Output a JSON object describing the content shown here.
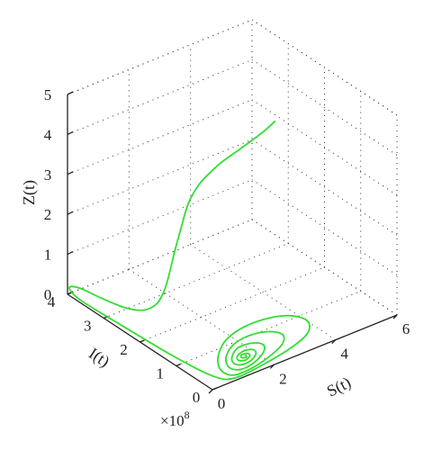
{
  "chart_data": {
    "type": "line3d",
    "title": "",
    "xlabel": "S(t)",
    "ylabel": "I(t)",
    "zlabel": "Z(t)",
    "x_multiplier": "",
    "y_multiplier": "×10",
    "y_multiplier_exp": "8",
    "xlim": [
      0,
      6
    ],
    "ylim": [
      0,
      4
    ],
    "zlim": [
      0,
      5
    ],
    "x_ticks": [
      0,
      2,
      4,
      6
    ],
    "y_ticks": [
      0,
      1,
      2,
      3,
      4
    ],
    "z_ticks": [
      0,
      1,
      2,
      3,
      4,
      5
    ],
    "grid": true,
    "line_color": "#33dd33",
    "series": [
      {
        "points": [
          [
            5.8,
            3.2,
            3.0
          ],
          [
            5.2,
            3.0,
            3.05
          ],
          [
            4.5,
            2.8,
            3.12
          ],
          [
            3.8,
            2.6,
            3.2
          ],
          [
            3.1,
            2.4,
            3.28
          ],
          [
            2.6,
            2.25,
            3.3
          ],
          [
            2.1,
            2.15,
            3.2
          ],
          [
            1.7,
            2.1,
            2.9
          ],
          [
            1.4,
            2.05,
            2.4
          ],
          [
            1.2,
            2.05,
            1.9
          ],
          [
            1.1,
            2.1,
            1.4
          ],
          [
            1.02,
            2.18,
            0.9
          ],
          [
            0.9,
            2.3,
            0.5
          ],
          [
            0.7,
            2.5,
            0.28
          ],
          [
            0.5,
            2.85,
            0.2
          ],
          [
            0.3,
            3.3,
            0.22
          ],
          [
            0.12,
            3.75,
            0.26
          ],
          [
            0.05,
            3.98,
            0.18
          ],
          [
            0.06,
            3.92,
            0.06
          ],
          [
            0.08,
            3.7,
            0.0
          ],
          [
            0.1,
            3.2,
            0.0
          ],
          [
            0.14,
            2.6,
            0.0
          ],
          [
            0.18,
            2.0,
            0.0
          ],
          [
            0.22,
            1.45,
            0.0
          ],
          [
            0.28,
            1.0,
            0.0
          ],
          [
            0.35,
            0.6,
            0.0
          ],
          [
            0.45,
            0.3,
            0.0
          ],
          [
            0.6,
            0.12,
            0.0
          ],
          [
            1.0,
            0.06,
            0.0
          ],
          [
            1.8,
            0.12,
            0.0
          ],
          [
            2.8,
            0.25,
            0.0
          ],
          [
            3.6,
            0.45,
            0.0
          ],
          [
            4.0,
            0.75,
            0.0
          ],
          [
            3.9,
            1.05,
            0.0
          ],
          [
            3.4,
            1.25,
            0.0
          ],
          [
            2.6,
            1.3,
            0.0
          ],
          [
            1.8,
            1.15,
            0.0
          ],
          [
            1.2,
            0.85,
            0.0
          ],
          [
            0.85,
            0.55,
            0.0
          ],
          [
            0.75,
            0.3,
            0.0
          ],
          [
            0.9,
            0.15,
            0.0
          ],
          [
            1.4,
            0.14,
            0.0
          ],
          [
            2.1,
            0.25,
            0.0
          ],
          [
            2.8,
            0.45,
            0.0
          ],
          [
            3.1,
            0.7,
            0.0
          ],
          [
            2.9,
            0.92,
            0.0
          ],
          [
            2.4,
            1.02,
            0.0
          ],
          [
            1.8,
            0.95,
            0.0
          ],
          [
            1.3,
            0.72,
            0.0
          ],
          [
            1.05,
            0.48,
            0.0
          ],
          [
            1.05,
            0.3,
            0.0
          ],
          [
            1.3,
            0.22,
            0.0
          ],
          [
            1.8,
            0.3,
            0.0
          ],
          [
            2.25,
            0.48,
            0.0
          ],
          [
            2.4,
            0.66,
            0.0
          ],
          [
            2.2,
            0.8,
            0.0
          ],
          [
            1.8,
            0.82,
            0.0
          ],
          [
            1.45,
            0.68,
            0.0
          ],
          [
            1.25,
            0.5,
            0.0
          ],
          [
            1.3,
            0.36,
            0.0
          ],
          [
            1.6,
            0.34,
            0.0
          ],
          [
            1.95,
            0.46,
            0.0
          ],
          [
            2.05,
            0.6,
            0.0
          ],
          [
            1.85,
            0.68,
            0.0
          ],
          [
            1.55,
            0.62,
            0.0
          ],
          [
            1.42,
            0.5,
            0.0
          ],
          [
            1.55,
            0.42,
            0.0
          ],
          [
            1.78,
            0.48,
            0.0
          ],
          [
            1.82,
            0.57,
            0.0
          ],
          [
            1.65,
            0.6,
            0.0
          ],
          [
            1.57,
            0.52,
            0.0
          ],
          [
            1.68,
            0.49,
            0.0
          ],
          [
            1.72,
            0.54,
            0.0
          ]
        ]
      }
    ]
  }
}
